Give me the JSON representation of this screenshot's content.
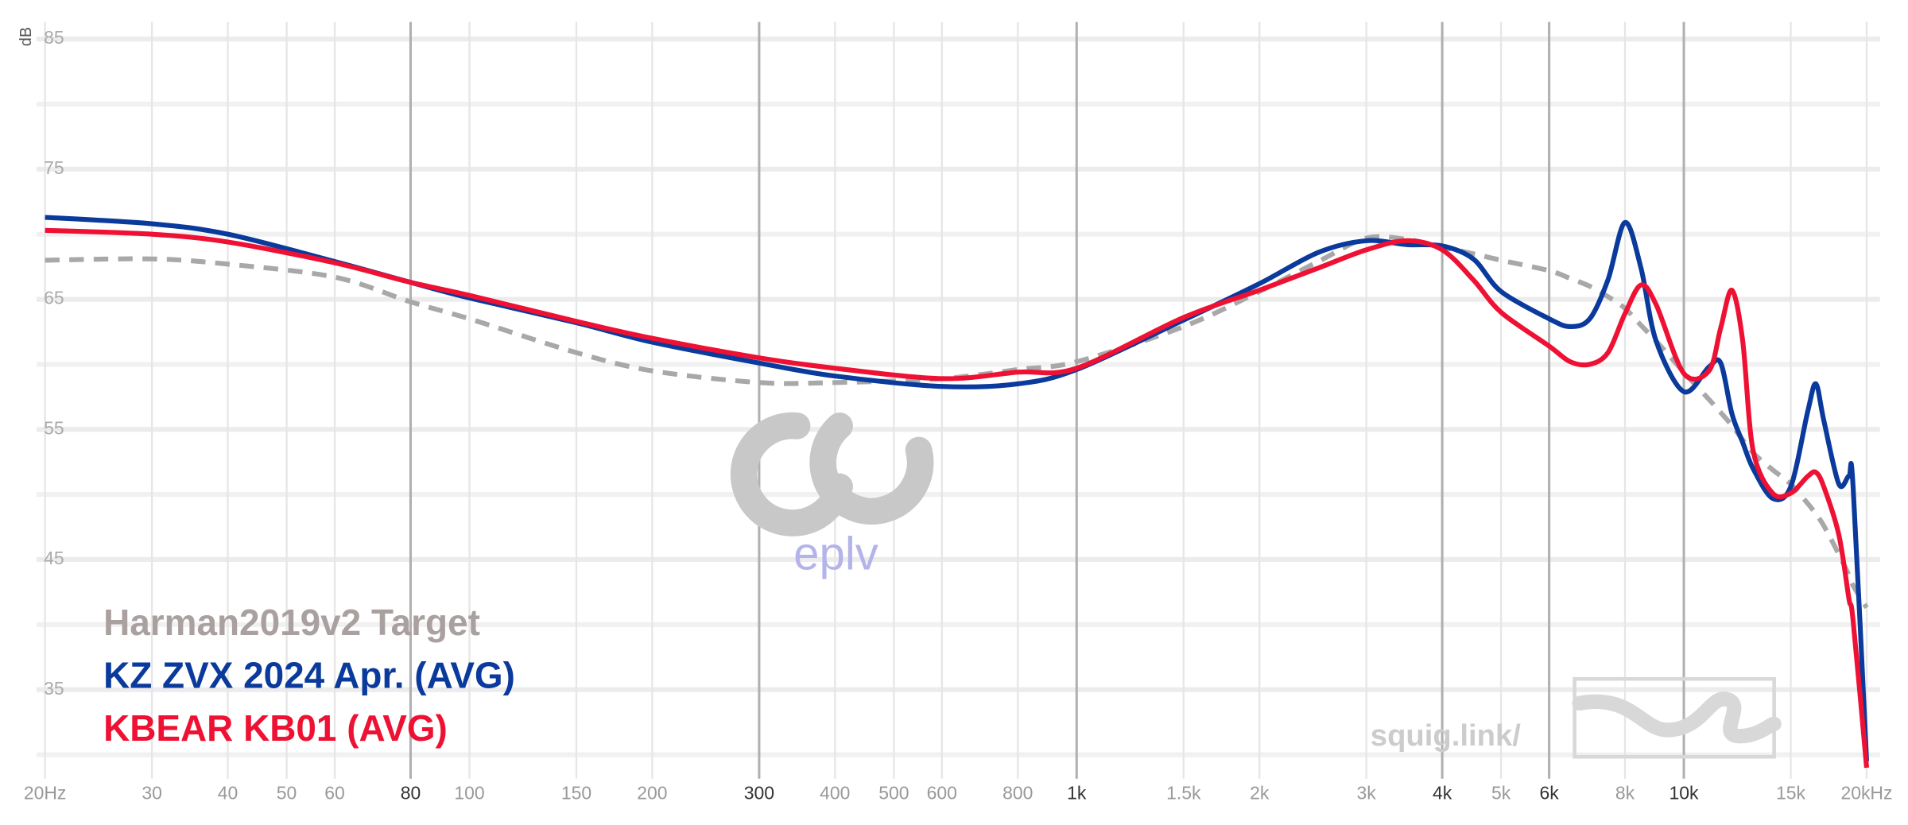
{
  "chart_data": {
    "type": "line",
    "y_label": "dB",
    "xscale": "log",
    "xlim": [
      20,
      20000
    ],
    "ylim": [
      29,
      86
    ],
    "xticks": [
      {
        "value": 20,
        "label": "20Hz"
      },
      30,
      40,
      50,
      60,
      80,
      100,
      150,
      200,
      300,
      400,
      500,
      600,
      800,
      {
        "value": 1000,
        "label": "1k"
      },
      {
        "value": 1500,
        "label": "1.5k"
      },
      {
        "value": 2000,
        "label": "2k"
      },
      {
        "value": 3000,
        "label": "3k"
      },
      {
        "value": 4000,
        "label": "4k"
      },
      {
        "value": 5000,
        "label": "5k"
      },
      {
        "value": 6000,
        "label": "6k"
      },
      {
        "value": 8000,
        "label": "8k"
      },
      {
        "value": 10000,
        "label": "10k"
      },
      {
        "value": 15000,
        "label": "15k"
      },
      {
        "value": 20000,
        "label": "20kHz"
      }
    ],
    "xticks_emphasized": [
      80,
      300,
      1000,
      4000,
      6000,
      10000
    ],
    "yticks": [
      35,
      45,
      55,
      65,
      75,
      85
    ],
    "y_minor_grid": [
      30,
      40,
      50,
      60,
      70,
      80
    ],
    "grid": true,
    "x": [
      20,
      30,
      40,
      60,
      80,
      100,
      150,
      200,
      300,
      400,
      600,
      800,
      1000,
      1500,
      2000,
      2500,
      3000,
      3500,
      4000,
      4500,
      5000,
      6000,
      6500,
      7000,
      7500,
      8000,
      8500,
      9000,
      10000,
      11000,
      11500,
      12000,
      12500,
      13000,
      14000,
      15000,
      16000,
      16500,
      17000,
      18000,
      18700,
      19000,
      20000
    ],
    "series": [
      {
        "name": "Harman2019v2 Target",
        "color": "#a8a8a8",
        "legend_color": "#aaa0a0",
        "dashed": true,
        "values": [
          68.0,
          68.1,
          67.7,
          66.7,
          64.8,
          63.5,
          60.9,
          59.5,
          58.6,
          58.6,
          58.9,
          59.6,
          60.2,
          62.9,
          65.6,
          67.9,
          69.7,
          69.6,
          69.0,
          68.5,
          68.0,
          67.2,
          66.6,
          66.0,
          65.2,
          64.3,
          63.0,
          61.8,
          59.4,
          57.3,
          56.3,
          55.3,
          54.2,
          53.2,
          51.9,
          50.8,
          49.3,
          48.5,
          47.6,
          45.4,
          43.8,
          43.0,
          41.3
        ]
      },
      {
        "name": "KZ ZVX 2024 Apr. (AVG)",
        "color": "#0a3a9c",
        "legend_color": "#0a3a9c",
        "dashed": false,
        "values": [
          71.3,
          70.8,
          70.0,
          67.9,
          66.3,
          65.1,
          63.2,
          61.7,
          60.1,
          59.1,
          58.3,
          58.5,
          59.6,
          63.4,
          66.2,
          68.6,
          69.5,
          69.2,
          69.1,
          68.1,
          65.6,
          63.5,
          62.9,
          63.5,
          66.5,
          70.9,
          67.4,
          61.8,
          57.9,
          59.8,
          60.1,
          56.2,
          54.0,
          52.0,
          49.7,
          50.6,
          56.4,
          58.5,
          55.7,
          50.8,
          51.4,
          50.6,
          29.5
        ]
      },
      {
        "name": "KBEAR KB01 (AVG)",
        "color": "#ee1133",
        "legend_color": "#ee1133",
        "dashed": false,
        "values": [
          70.3,
          70.0,
          69.4,
          67.8,
          66.3,
          65.3,
          63.3,
          62.0,
          60.5,
          59.7,
          58.9,
          59.4,
          59.7,
          63.6,
          65.7,
          67.4,
          68.8,
          69.5,
          68.8,
          66.5,
          64.0,
          61.4,
          60.2,
          60.0,
          60.9,
          63.9,
          66.1,
          64.6,
          59.3,
          59.5,
          62.8,
          65.7,
          61.8,
          53.4,
          50.1,
          50.1,
          51.4,
          51.7,
          50.6,
          46.9,
          42.0,
          40.3,
          29.0
        ]
      }
    ],
    "watermarks": [
      "eplv",
      "squig.link/"
    ]
  }
}
